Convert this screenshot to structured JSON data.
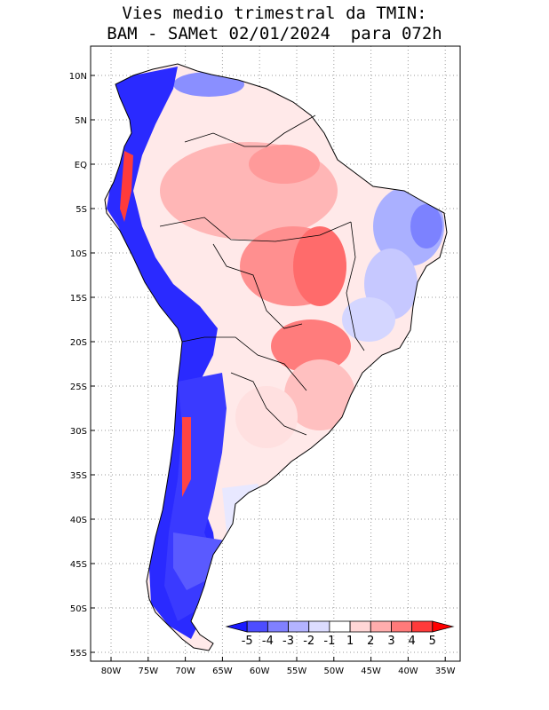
{
  "title": {
    "line1": "Vies medio trimestral da TMIN:",
    "line2": "BAM - SAMet 02/01/2024  para 072h"
  },
  "map": {
    "lat_ticks": [
      "10N",
      "5N",
      "EQ",
      "5S",
      "10S",
      "15S",
      "20S",
      "25S",
      "30S",
      "35S",
      "40S",
      "45S",
      "50S",
      "55S"
    ],
    "lon_ticks": [
      "80W",
      "75W",
      "70W",
      "65W",
      "60W",
      "55W",
      "50W",
      "45W",
      "40W",
      "35W"
    ],
    "grid": "dotted"
  },
  "colorbar": {
    "labels": [
      "-5",
      "-4",
      "-3",
      "-2",
      "-1",
      "1",
      "2",
      "3",
      "4",
      "5"
    ],
    "colors": [
      "#1a1aff",
      "#4d4dff",
      "#8080ff",
      "#b3b3ff",
      "#dcdcff",
      "#ffffff",
      "#ffd6d6",
      "#ffadad",
      "#ff7a7a",
      "#ff3b3b",
      "#ff0000"
    ]
  }
}
